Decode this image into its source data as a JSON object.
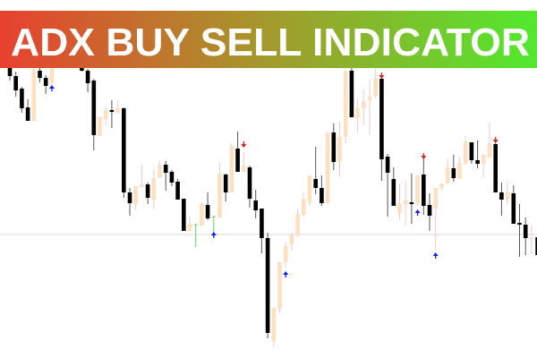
{
  "banner": {
    "title": "ADX BUY SELL INDICATOR",
    "gradient_start": "#e8412f",
    "gradient_mid": "#a39a2c",
    "gradient_end": "#52e92d"
  },
  "colors": {
    "bull_body": "#fde0c2",
    "bull_wick": "#f2c9c9",
    "bear_body": "#000000",
    "bear_wick": "#555555",
    "green_candle": "#5fd35f",
    "buy_arrow": "#1a1aff",
    "sell_arrow": "#e0201a",
    "level_line": "#d9d9d9"
  },
  "chart_data": {
    "type": "candlestick",
    "title": "",
    "price_range": [
      0,
      400
    ],
    "grid": false,
    "candles_ohlc": [
      [
        350,
        360,
        310,
        315
      ],
      [
        315,
        320,
        292,
        299
      ],
      [
        301,
        303,
        274,
        279
      ],
      [
        280,
        289,
        265,
        265
      ],
      [
        265,
        325,
        265,
        322
      ],
      [
        321,
        324,
        308,
        313
      ],
      [
        313,
        316,
        295,
        304
      ],
      [
        307,
        325,
        305,
        323
      ],
      [
        328,
        345,
        325,
        340
      ],
      [
        340,
        360,
        335,
        355
      ],
      [
        355,
        362,
        340,
        345
      ],
      [
        345,
        350,
        330,
        335
      ],
      [
        350,
        358,
        320,
        321
      ],
      [
        321,
        323,
        297,
        307
      ],
      [
        310,
        312,
        232,
        249
      ],
      [
        248,
        270,
        248,
        269
      ],
      [
        267,
        280,
        260,
        277
      ],
      [
        277,
        288,
        257,
        275
      ],
      [
        274,
        287,
        274,
        279
      ],
      [
        279,
        280,
        179,
        185
      ],
      [
        185,
        190,
        159,
        173
      ],
      [
        172,
        192,
        165,
        192
      ],
      [
        191,
        216,
        191,
        194
      ],
      [
        194,
        196,
        172,
        179
      ],
      [
        177,
        211,
        166,
        201
      ],
      [
        202,
        220,
        202,
        216
      ],
      [
        216,
        220,
        187,
        207
      ],
      [
        208,
        210,
        192,
        196
      ],
      [
        197,
        200,
        177,
        177
      ],
      [
        178,
        178,
        142,
        142
      ],
      [
        142,
        158,
        142,
        150
      ],
      [
        149,
        149,
        124,
        149
      ],
      [
        148,
        174,
        148,
        172
      ],
      [
        171,
        185,
        154,
        156
      ],
      [
        158,
        158,
        140,
        158
      ],
      [
        157,
        218,
        157,
        206
      ],
      [
        205,
        206,
        175,
        185
      ],
      [
        185,
        240,
        185,
        236
      ],
      [
        234,
        253,
        208,
        208
      ],
      [
        208,
        230,
        208,
        214
      ],
      [
        213,
        215,
        168,
        178
      ],
      [
        176,
        188,
        156,
        165
      ],
      [
        167,
        167,
        117,
        134
      ],
      [
        134,
        140,
        22,
        28
      ],
      [
        19,
        56,
        12,
        56
      ],
      [
        55,
        107,
        50,
        107
      ],
      [
        107,
        130,
        100,
        125
      ],
      [
        127,
        140,
        120,
        137
      ],
      [
        137,
        167,
        135,
        161
      ],
      [
        160,
        185,
        158,
        178
      ],
      [
        174,
        204,
        170,
        204
      ],
      [
        200,
        236,
        183,
        190
      ],
      [
        190,
        204,
        170,
        173
      ],
      [
        173,
        252,
        173,
        252
      ],
      [
        252,
        262,
        210,
        219
      ],
      [
        219,
        264,
        203,
        247
      ],
      [
        247,
        321,
        240,
        321
      ],
      [
        321,
        345,
        269,
        269
      ],
      [
        268,
        290,
        252,
        279
      ],
      [
        279,
        300,
        260,
        287
      ],
      [
        288,
        310,
        250,
        292
      ],
      [
        293,
        323,
        290,
        313
      ],
      [
        312,
        315,
        198,
        222
      ],
      [
        225,
        228,
        158,
        207
      ],
      [
        200,
        213,
        170,
        170
      ],
      [
        162,
        194,
        155,
        172
      ],
      [
        172,
        198,
        148,
        176
      ],
      [
        174,
        206,
        150,
        172
      ],
      [
        172,
        204,
        170,
        204
      ],
      [
        205,
        225,
        160,
        170
      ],
      [
        171,
        184,
        142,
        159
      ],
      [
        167,
        190,
        120,
        190
      ],
      [
        190,
        195,
        188,
        195
      ],
      [
        195,
        223,
        195,
        213
      ],
      [
        212,
        227,
        197,
        201
      ],
      [
        200,
        225,
        200,
        218
      ],
      [
        217,
        248,
        217,
        242
      ],
      [
        241,
        241,
        217,
        221
      ],
      [
        221,
        243,
        212,
        217
      ],
      [
        217,
        227,
        202,
        227
      ],
      [
        224,
        263,
        224,
        240
      ],
      [
        239,
        242,
        185,
        185
      ],
      [
        185,
        196,
        159,
        177
      ],
      [
        177,
        197,
        172,
        185
      ],
      [
        184,
        193,
        150,
        150
      ],
      [
        151,
        172,
        113,
        149
      ],
      [
        149,
        157,
        115,
        134
      ],
      [
        134,
        148,
        117,
        135
      ],
      [
        135,
        140,
        110,
        115
      ]
    ],
    "green_candles": [
      31,
      34
    ],
    "buy_signals": [
      {
        "index": 7,
        "price": 302
      },
      {
        "index": 34,
        "price": 138
      },
      {
        "index": 46,
        "price": 94
      },
      {
        "index": 68,
        "price": 163
      },
      {
        "index": 71,
        "price": 115
      }
    ],
    "sell_signals": [
      {
        "index": 39,
        "price": 238
      },
      {
        "index": 62,
        "price": 315
      },
      {
        "index": 69,
        "price": 225
      },
      {
        "index": 81,
        "price": 243
      }
    ],
    "horizontal_level": 138
  }
}
